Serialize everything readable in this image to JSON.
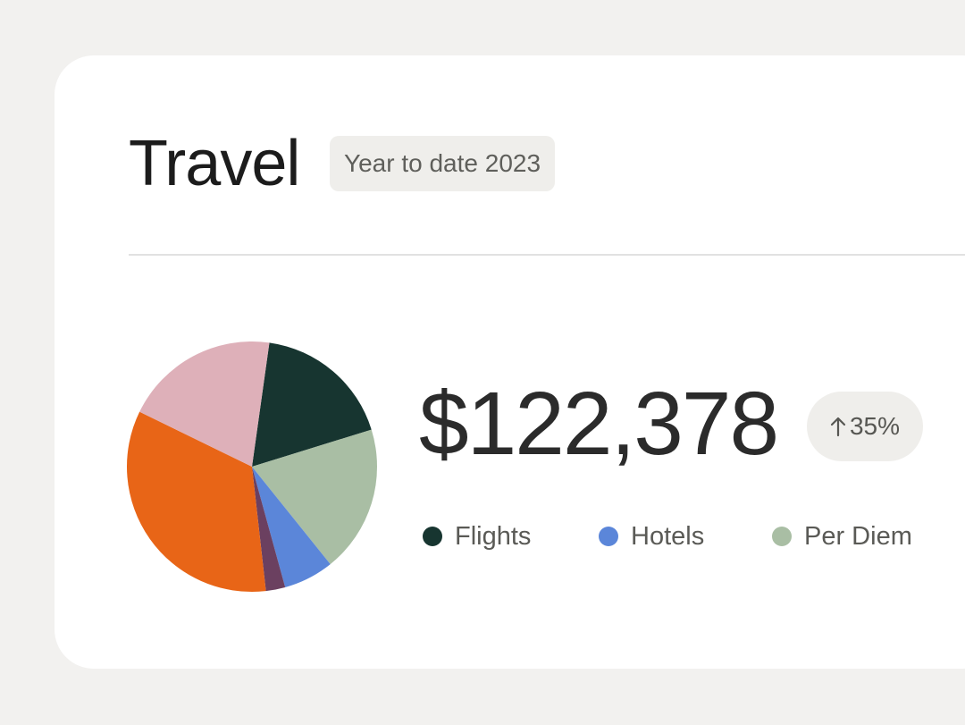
{
  "card": {
    "title": "Travel",
    "period_badge": "Year to date 2023",
    "total_amount": "$122,378",
    "change": {
      "arrow_icon": "arrow-up-icon",
      "label": "35%"
    },
    "legend": [
      {
        "label": "Flights",
        "color": "#173530"
      },
      {
        "label": "Hotels",
        "color": "#5b86d9"
      },
      {
        "label": "Per Diem",
        "color": "#a9bea4"
      }
    ]
  },
  "chart_data": {
    "type": "pie",
    "slices": [
      {
        "name": "Flights",
        "value": 18,
        "color": "#173530"
      },
      {
        "name": "Per Diem",
        "value": 19,
        "color": "#a9bea4"
      },
      {
        "name": "Hotels",
        "value": 6.5,
        "color": "#5b86d9"
      },
      {
        "color": "#6b4060",
        "value": 2.5
      },
      {
        "color": "#e86517",
        "value": 34
      },
      {
        "color": "#deb0b9",
        "value": 20
      }
    ],
    "start_angle_deg": 8
  }
}
